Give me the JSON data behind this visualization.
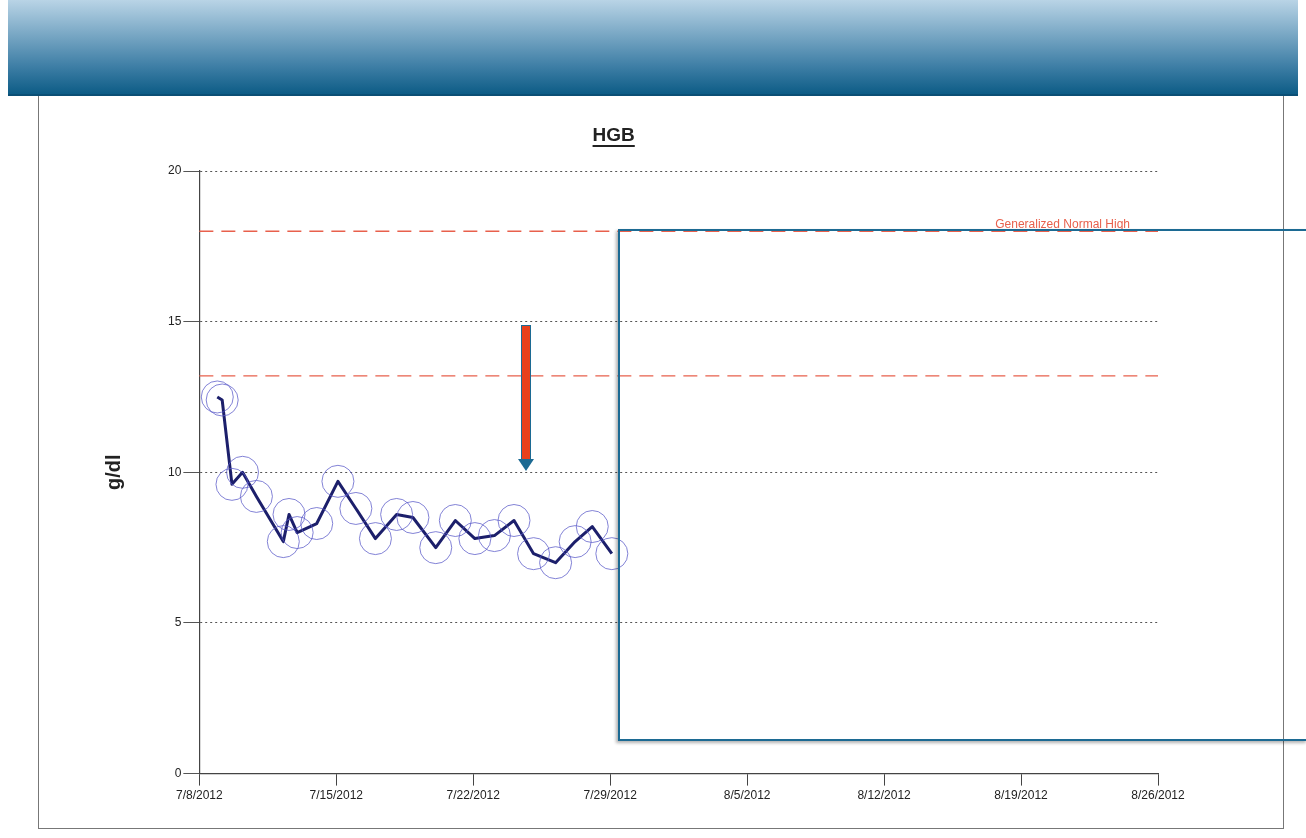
{
  "chart_data": {
    "type": "line",
    "title": "HGB",
    "ylabel": "g/dl",
    "x": [
      "2012-07-08T22:00",
      "2012-07-09T04:00",
      "2012-07-09T16:00",
      "2012-07-10T05:00",
      "2012-07-10T22:00",
      "2012-07-12T07:00",
      "2012-07-12T14:00",
      "2012-07-13T00:00",
      "2012-07-14T00:00",
      "2012-07-15T02:00",
      "2012-07-16T00:00",
      "2012-07-17T00:00",
      "2012-07-18T02:00",
      "2012-07-18T22:00",
      "2012-07-20T02:00",
      "2012-07-21T02:00",
      "2012-07-22T02:00",
      "2012-07-23T02:00",
      "2012-07-24T02:00",
      "2012-07-25T02:00",
      "2012-07-26T05:00",
      "2012-07-27T05:00",
      "2012-07-28T02:00",
      "2012-07-29T02:00"
    ],
    "values": [
      12.5,
      12.4,
      9.6,
      10.0,
      9.2,
      7.7,
      8.6,
      8.0,
      8.3,
      9.7,
      8.8,
      7.8,
      8.6,
      8.5,
      7.5,
      8.4,
      7.8,
      7.9,
      8.4,
      7.3,
      7.0,
      7.7,
      8.2,
      7.3
    ],
    "color": "#1c1f6b",
    "marker": "circle",
    "line_style": "solid",
    "xlim": [
      "2012-07-08",
      "2012-08-26"
    ],
    "xticks": [
      {
        "value": "2012-07-08",
        "label": "7/8/2012"
      },
      {
        "value": "2012-07-15",
        "label": "7/15/2012"
      },
      {
        "value": "2012-07-22",
        "label": "7/22/2012"
      },
      {
        "value": "2012-07-29",
        "label": "7/29/2012"
      },
      {
        "value": "2012-08-05",
        "label": "8/5/2012"
      },
      {
        "value": "2012-08-12",
        "label": "8/12/2012"
      },
      {
        "value": "2012-08-19",
        "label": "8/19/2012"
      },
      {
        "value": "2012-08-26",
        "label": "8/26/2012"
      }
    ],
    "ylim": [
      0,
      20
    ],
    "yticks": [
      0,
      5,
      10,
      15,
      20
    ],
    "grid": "y",
    "legend": false,
    "ref_lines": [
      {
        "axis": "y",
        "value": 18,
        "label": "Generalized Normal High",
        "color": "#e8604c",
        "line_style": "dashed"
      },
      {
        "axis": "y",
        "value": 13.2,
        "label": null,
        "color": "#e8604c",
        "line_style": "dashed"
      }
    ]
  }
}
